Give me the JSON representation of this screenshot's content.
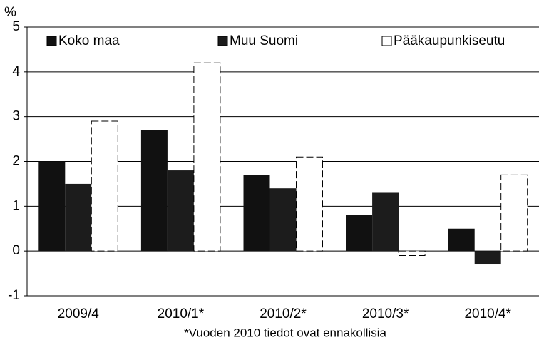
{
  "chart_data": {
    "type": "bar",
    "y_label": "%",
    "footnote": "*Vuoden 2010 tiedot ovat ennakollisia",
    "categories": [
      "2009/4",
      "2010/1*",
      "2010/2*",
      "2010/3*",
      "2010/4*"
    ],
    "series": [
      {
        "name": "Koko maa",
        "color": "#111111",
        "values": [
          2.0,
          2.7,
          1.7,
          0.8,
          0.5
        ]
      },
      {
        "name": "Muu Suomi",
        "color": "#1c1c1c",
        "values": [
          1.5,
          1.8,
          1.4,
          1.3,
          -0.3
        ]
      },
      {
        "name": "Pääkaupunkiseutu",
        "color": "#ffffff",
        "values": [
          2.9,
          4.2,
          2.1,
          -0.1,
          1.7
        ]
      }
    ],
    "ylim": [
      -1,
      5
    ],
    "yticks": [
      -1,
      0,
      1,
      2,
      3,
      4,
      5
    ],
    "grid": true,
    "legend": "top"
  }
}
